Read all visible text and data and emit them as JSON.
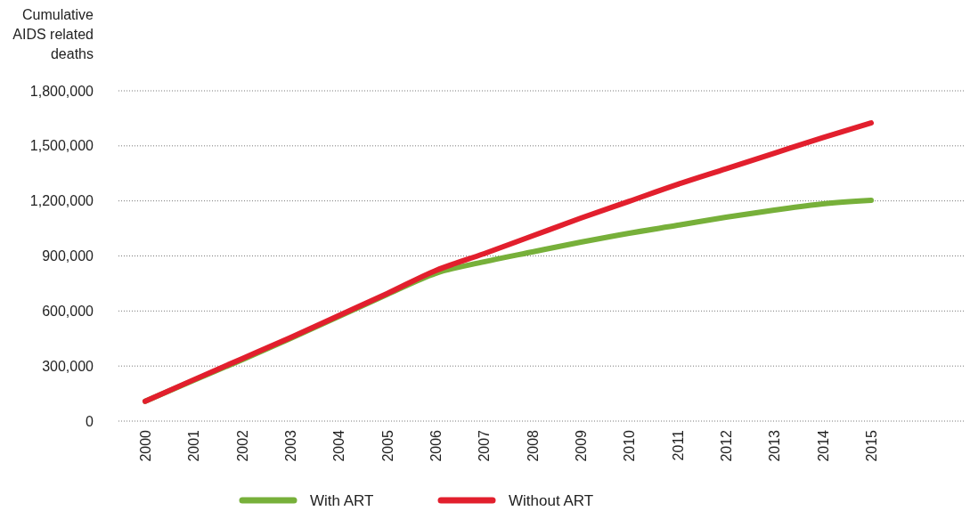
{
  "chart_data": {
    "type": "line",
    "ylabel": "Cumulative AIDS related deaths",
    "categories": [
      "2000",
      "2001",
      "2002",
      "2003",
      "2004",
      "2005",
      "2006",
      "2007",
      "2008",
      "2009",
      "2010",
      "2011",
      "2012",
      "2013",
      "2014",
      "2015"
    ],
    "series": [
      {
        "name": "With ART",
        "color": "#77b03a",
        "values": [
          108000,
          222000,
          334000,
          450000,
          570000,
          690000,
          805000,
          868000,
          922000,
          975000,
          1024000,
          1067000,
          1111000,
          1150000,
          1184000,
          1203000
        ]
      },
      {
        "name": "Without ART",
        "color": "#e21f2d",
        "values": [
          108000,
          225000,
          340000,
          455000,
          575000,
          695000,
          820000,
          912000,
          1009000,
          1106000,
          1198000,
          1290000,
          1375000,
          1460000,
          1545000,
          1625000
        ]
      }
    ],
    "ylim": [
      0,
      1800000
    ],
    "yticks": [
      {
        "value": 0,
        "label": "0"
      },
      {
        "value": 300000,
        "label": "300,000"
      },
      {
        "value": 600000,
        "label": "600,000"
      },
      {
        "value": 900000,
        "label": "900,000"
      },
      {
        "value": 1200000,
        "label": "1,200,000"
      },
      {
        "value": 1500000,
        "label": "1,500,000"
      },
      {
        "value": 1800000,
        "label": "1,800,000"
      }
    ],
    "grid": "y",
    "legend": "bottom",
    "marker": "none",
    "line_style": "solid"
  }
}
